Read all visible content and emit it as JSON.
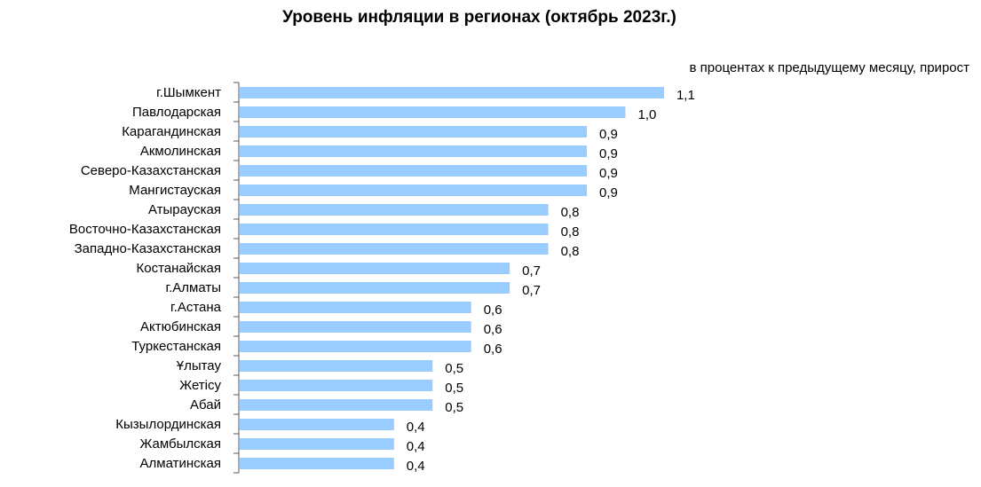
{
  "chart_data": {
    "type": "bar",
    "orientation": "horizontal",
    "title": "Уровень инфляции в регионах (октябрь 2023г.)",
    "subtitle": "в процентах к предыдущему месяцу, прирост",
    "xlabel": "",
    "ylabel": "",
    "xlim": [
      0,
      1.1
    ],
    "grid": false,
    "bar_color": "#99CCFF",
    "categories": [
      "г.Шымкент",
      "Павлодарская",
      "Карагандинская",
      "Акмолинская",
      "Северо-Казахстанская",
      "Мангистауская",
      "Атырауская",
      "Восточно-Казахстанская",
      "Западно-Казахстанская",
      "Костанайская",
      "г.Алматы",
      "г.Астана",
      "Актюбинская",
      "Туркестанская",
      "Ұлытау",
      "Жетісу",
      "Абай",
      "Кызылординская",
      "Жамбылская",
      "Алматинская"
    ],
    "values": [
      1.1,
      1.0,
      0.9,
      0.9,
      0.9,
      0.9,
      0.8,
      0.8,
      0.8,
      0.7,
      0.7,
      0.6,
      0.6,
      0.6,
      0.5,
      0.5,
      0.5,
      0.4,
      0.4,
      0.4
    ],
    "value_labels": [
      "1,1",
      "1,0",
      "0,9",
      "0,9",
      "0,9",
      "0,9",
      "0,8",
      "0,8",
      "0,8",
      "0,7",
      "0,7",
      "0,6",
      "0,6",
      "0,6",
      "0,5",
      "0,5",
      "0,5",
      "0,4",
      "0,4",
      "0,4"
    ]
  }
}
